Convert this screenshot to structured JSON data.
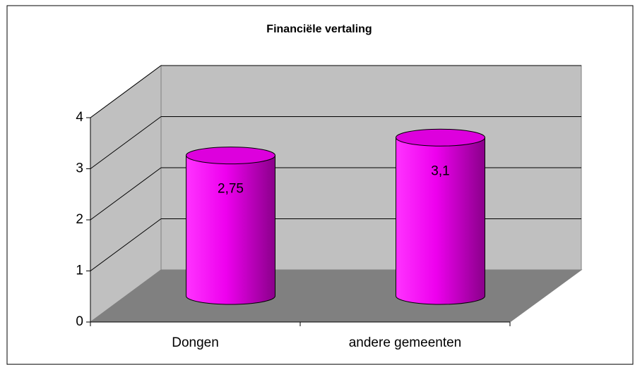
{
  "chart_data": {
    "type": "bar3d",
    "title": "Financiële vertaling",
    "categories": [
      "Dongen",
      "andere gemeenten"
    ],
    "values": [
      2.75,
      3.1
    ],
    "value_labels": [
      "2,75",
      "3,1"
    ],
    "color": "#ff00ff",
    "ylim": [
      0,
      4
    ],
    "yticks": [
      0,
      1,
      2,
      3,
      4
    ],
    "grid": true
  }
}
